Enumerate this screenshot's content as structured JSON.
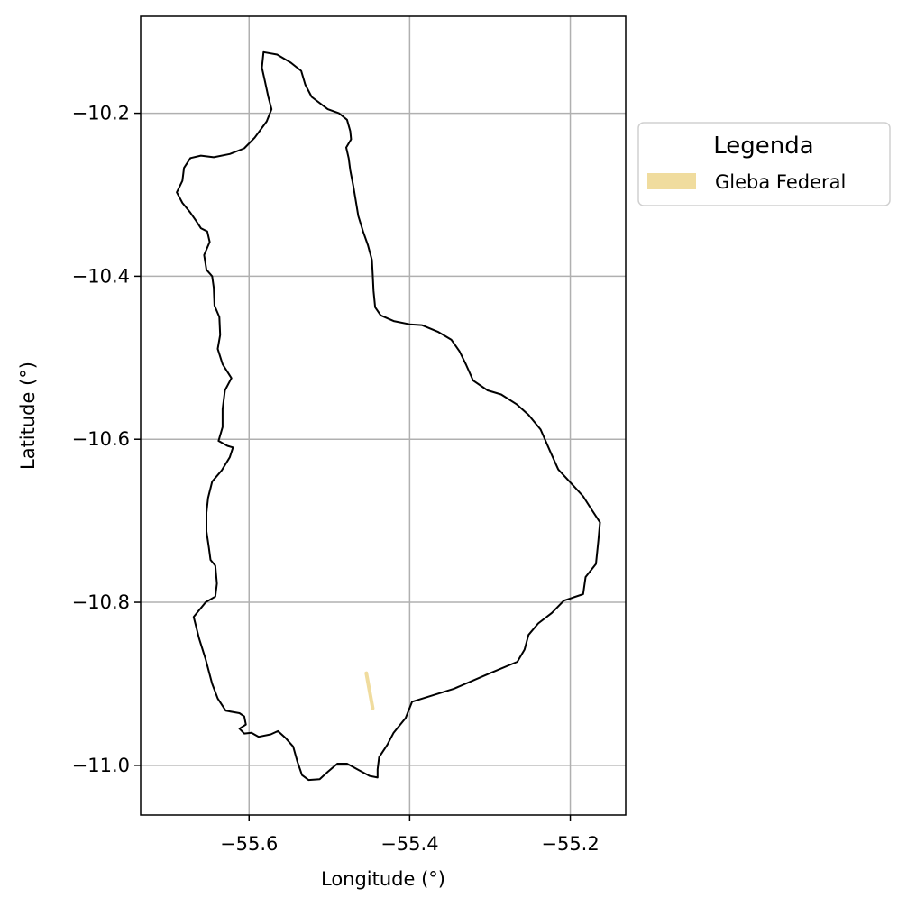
{
  "chart_data": {
    "type": "map",
    "title": "",
    "xlabel": "Longitude (°)",
    "ylabel": "Latitude (°)",
    "xlim": [
      -55.735,
      -55.131
    ],
    "ylim": [
      -11.061,
      -10.081
    ],
    "grid": true,
    "xticks": [
      -55.6,
      -55.4,
      -55.2
    ],
    "yticks": [
      -10.2,
      -10.4,
      -10.6,
      -10.8,
      -11.0
    ],
    "xtick_labels": [
      "−55.6",
      "−55.4",
      "−55.2"
    ],
    "ytick_labels": [
      "−10.2",
      "−10.4",
      "−10.6",
      "−10.8",
      "−11.0"
    ],
    "legend": {
      "title": "Legenda",
      "placement": "outside right, top",
      "entries": [
        {
          "label": "Gleba Federal",
          "color": "#f0dc9e"
        }
      ]
    },
    "boundary": {
      "name": "municipality boundary",
      "color": "#000000",
      "points": [
        [
          -55.582,
          -10.125
        ],
        [
          -55.565,
          -10.128
        ],
        [
          -55.548,
          -10.138
        ],
        [
          -55.535,
          -10.148
        ],
        [
          -55.53,
          -10.165
        ],
        [
          -55.522,
          -10.18
        ],
        [
          -55.502,
          -10.195
        ],
        [
          -55.488,
          -10.2
        ],
        [
          -55.478,
          -10.208
        ],
        [
          -55.474,
          -10.222
        ],
        [
          -55.473,
          -10.232
        ],
        [
          -55.479,
          -10.242
        ],
        [
          -55.476,
          -10.255
        ],
        [
          -55.474,
          -10.27
        ],
        [
          -55.47,
          -10.29
        ],
        [
          -55.467,
          -10.308
        ],
        [
          -55.464,
          -10.326
        ],
        [
          -55.458,
          -10.345
        ],
        [
          -55.452,
          -10.362
        ],
        [
          -55.447,
          -10.38
        ],
        [
          -55.446,
          -10.398
        ],
        [
          -55.445,
          -10.418
        ],
        [
          -55.443,
          -10.438
        ],
        [
          -55.436,
          -10.448
        ],
        [
          -55.42,
          -10.455
        ],
        [
          -55.4,
          -10.459
        ],
        [
          -55.385,
          -10.46
        ],
        [
          -55.365,
          -10.468
        ],
        [
          -55.348,
          -10.478
        ],
        [
          -55.338,
          -10.492
        ],
        [
          -55.33,
          -10.508
        ],
        [
          -55.321,
          -10.528
        ],
        [
          -55.303,
          -10.54
        ],
        [
          -55.286,
          -10.545
        ],
        [
          -55.267,
          -10.557
        ],
        [
          -55.252,
          -10.57
        ],
        [
          -55.237,
          -10.588
        ],
        [
          -55.225,
          -10.615
        ],
        [
          -55.215,
          -10.637
        ],
        [
          -55.198,
          -10.655
        ],
        [
          -55.184,
          -10.67
        ],
        [
          -55.173,
          -10.687
        ],
        [
          -55.163,
          -10.702
        ],
        [
          -55.165,
          -10.724
        ],
        [
          -55.168,
          -10.753
        ],
        [
          -55.181,
          -10.769
        ],
        [
          -55.184,
          -10.79
        ],
        [
          -55.208,
          -10.798
        ],
        [
          -55.223,
          -10.813
        ],
        [
          -55.24,
          -10.826
        ],
        [
          -55.252,
          -10.84
        ],
        [
          -55.257,
          -10.858
        ],
        [
          -55.266,
          -10.873
        ],
        [
          -55.3,
          -10.887
        ],
        [
          -55.345,
          -10.906
        ],
        [
          -55.397,
          -10.922
        ],
        [
          -55.405,
          -10.942
        ],
        [
          -55.42,
          -10.96
        ],
        [
          -55.428,
          -10.975
        ],
        [
          -55.438,
          -10.99
        ],
        [
          -55.44,
          -11.005
        ],
        [
          -55.44,
          -11.015
        ],
        [
          -55.45,
          -11.013
        ],
        [
          -55.465,
          -11.005
        ],
        [
          -55.478,
          -10.998
        ],
        [
          -55.49,
          -10.998
        ],
        [
          -55.502,
          -11.008
        ],
        [
          -55.512,
          -11.017
        ],
        [
          -55.526,
          -11.018
        ],
        [
          -55.534,
          -11.012
        ],
        [
          -55.54,
          -10.995
        ],
        [
          -55.545,
          -10.977
        ],
        [
          -55.555,
          -10.966
        ],
        [
          -55.564,
          -10.958
        ],
        [
          -55.573,
          -10.962
        ],
        [
          -55.588,
          -10.965
        ],
        [
          -55.597,
          -10.96
        ],
        [
          -55.606,
          -10.961
        ],
        [
          -55.612,
          -10.955
        ],
        [
          -55.604,
          -10.95
        ],
        [
          -55.606,
          -10.94
        ],
        [
          -55.612,
          -10.936
        ],
        [
          -55.629,
          -10.933
        ],
        [
          -55.639,
          -10.918
        ],
        [
          -55.646,
          -10.9
        ],
        [
          -55.654,
          -10.87
        ],
        [
          -55.662,
          -10.845
        ],
        [
          -55.669,
          -10.818
        ],
        [
          -55.654,
          -10.8
        ],
        [
          -55.642,
          -10.793
        ],
        [
          -55.64,
          -10.777
        ],
        [
          -55.642,
          -10.755
        ],
        [
          -55.648,
          -10.748
        ],
        [
          -55.65,
          -10.733
        ],
        [
          -55.653,
          -10.713
        ],
        [
          -55.653,
          -10.69
        ],
        [
          -55.651,
          -10.672
        ],
        [
          -55.646,
          -10.652
        ],
        [
          -55.634,
          -10.638
        ],
        [
          -55.624,
          -10.622
        ],
        [
          -55.62,
          -10.61
        ],
        [
          -55.627,
          -10.608
        ],
        [
          -55.638,
          -10.602
        ],
        [
          -55.633,
          -10.585
        ],
        [
          -55.633,
          -10.563
        ],
        [
          -55.63,
          -10.54
        ],
        [
          -55.622,
          -10.525
        ],
        [
          -55.633,
          -10.508
        ],
        [
          -55.639,
          -10.489
        ],
        [
          -55.636,
          -10.472
        ],
        [
          -55.637,
          -10.45
        ],
        [
          -55.643,
          -10.436
        ],
        [
          -55.644,
          -10.414
        ],
        [
          -55.646,
          -10.4
        ],
        [
          -55.653,
          -10.392
        ],
        [
          -55.656,
          -10.374
        ],
        [
          -55.649,
          -10.358
        ],
        [
          -55.652,
          -10.345
        ],
        [
          -55.66,
          -10.341
        ],
        [
          -55.666,
          -10.332
        ],
        [
          -55.673,
          -10.322
        ],
        [
          -55.683,
          -10.31
        ],
        [
          -55.69,
          -10.297
        ],
        [
          -55.683,
          -10.283
        ],
        [
          -55.681,
          -10.267
        ],
        [
          -55.673,
          -10.255
        ],
        [
          -55.66,
          -10.252
        ],
        [
          -55.644,
          -10.254
        ],
        [
          -55.624,
          -10.25
        ],
        [
          -55.606,
          -10.243
        ],
        [
          -55.593,
          -10.23
        ],
        [
          -55.578,
          -10.21
        ],
        [
          -55.572,
          -10.195
        ],
        [
          -55.576,
          -10.18
        ],
        [
          -55.58,
          -10.162
        ],
        [
          -55.584,
          -10.144
        ],
        [
          -55.582,
          -10.125
        ]
      ]
    },
    "gleba_federal": {
      "name": "Gleba Federal",
      "color": "#f0dc9e",
      "points": [
        [
          -55.454,
          -10.887
        ],
        [
          -55.446,
          -10.93
        ]
      ]
    }
  }
}
